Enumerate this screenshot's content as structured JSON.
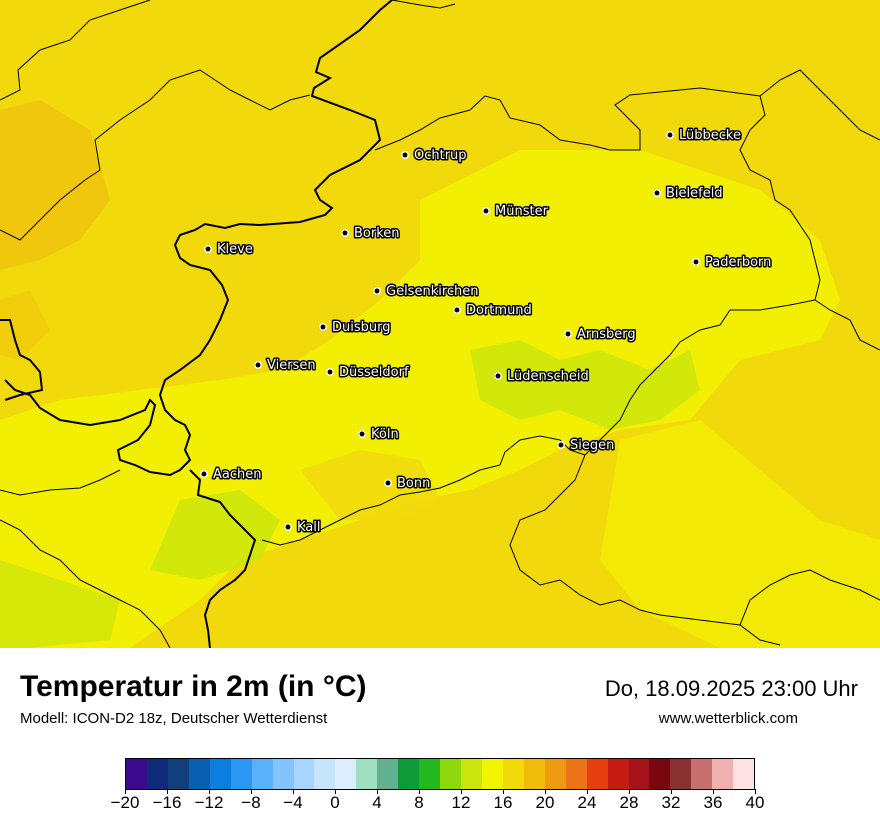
{
  "map": {
    "cities": [
      {
        "name": "Lübbecke"
      },
      {
        "name": "Ochtrup"
      },
      {
        "name": "Bielefeld"
      },
      {
        "name": "Münster"
      },
      {
        "name": "Borken"
      },
      {
        "name": "Kleve"
      },
      {
        "name": "Paderborn"
      },
      {
        "name": "Gelsenkirchen"
      },
      {
        "name": "Dortmund"
      },
      {
        "name": "Duisburg"
      },
      {
        "name": "Arnsberg"
      },
      {
        "name": "Viersen"
      },
      {
        "name": "Düsseldorf"
      },
      {
        "name": "Lüdenscheid"
      },
      {
        "name": "Köln"
      },
      {
        "name": "Siegen"
      },
      {
        "name": "Aachen"
      },
      {
        "name": "Bonn"
      },
      {
        "name": "Kall"
      }
    ],
    "base_color": "#f2d90c"
  },
  "footer": {
    "title": "Temperatur in 2m (in °C)",
    "subtitle": "Modell: ICON-D2 18z, Deutscher Wetterdienst",
    "datetime": "Do, 18.09.2025 23:00 Uhr",
    "website": "www.wetterblick.com"
  },
  "legend": {
    "colors": [
      "#3a0a8c",
      "#0e2a7a",
      "#103f7c",
      "#0a5fb0",
      "#0a7fe0",
      "#2a97f5",
      "#5bb0fa",
      "#82c4fb",
      "#a8d6fc",
      "#c7e4fd",
      "#dceefe",
      "#9fe0c3",
      "#62b08f",
      "#0f9a3a",
      "#22b81e",
      "#8ed80e",
      "#cbe60c",
      "#f2f500",
      "#f2d90c",
      "#f0bd0c",
      "#ef9a10",
      "#ee7318",
      "#e63e0c",
      "#c41c12",
      "#a8121a",
      "#7a0610",
      "#8a3232",
      "#c87070",
      "#f0b0b0",
      "#fde2e4"
    ],
    "ticks": [
      "−20",
      "−16",
      "−12",
      "−8",
      "−4",
      "0",
      "4",
      "8",
      "12",
      "16",
      "20",
      "24",
      "28",
      "32",
      "36",
      "40"
    ]
  }
}
